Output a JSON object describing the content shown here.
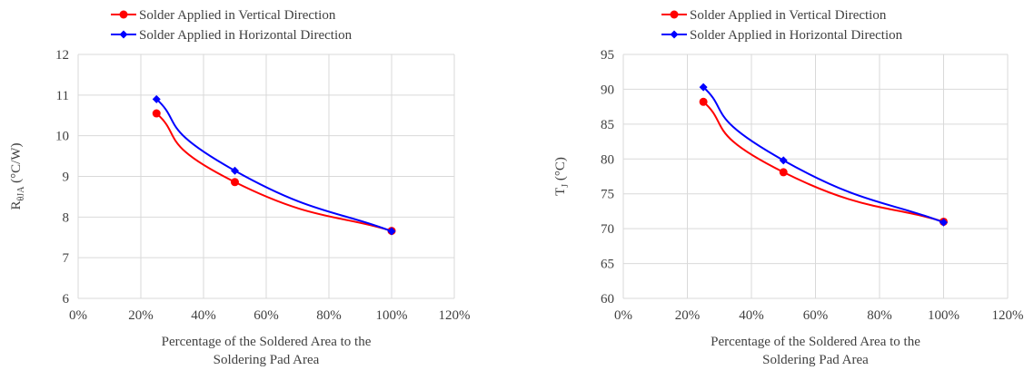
{
  "chart_data": [
    {
      "type": "line",
      "x": [
        0.25,
        0.5,
        1.0
      ],
      "xlim": [
        0,
        1.2
      ],
      "xticks": [
        "0%",
        "20%",
        "40%",
        "60%",
        "80%",
        "100%",
        "120%"
      ],
      "ylim": [
        6,
        12
      ],
      "yticks": [
        "6",
        "7",
        "8",
        "9",
        "10",
        "11",
        "12"
      ],
      "xlabel_lines": [
        "Percentage of the Soldered Area to the",
        "Soldering Pad Area"
      ],
      "ylabel": {
        "main": "R",
        "sub": "θJA",
        "unit": " (°C/W)"
      },
      "grid": true,
      "smooth": true,
      "legend_position": "top",
      "series": [
        {
          "name": "Solder Applied in Vertical Direction",
          "values": [
            10.55,
            8.86,
            7.66
          ],
          "color": "#ff0000",
          "marker": "circle"
        },
        {
          "name": "Solder Applied in Horizontal Direction",
          "values": [
            10.9,
            9.14,
            7.65
          ],
          "color": "#0000ff",
          "marker": "diamond"
        }
      ]
    },
    {
      "type": "line",
      "x": [
        0.25,
        0.5,
        1.0
      ],
      "xlim": [
        0,
        1.2
      ],
      "xticks": [
        "0%",
        "20%",
        "40%",
        "60%",
        "80%",
        "100%",
        "120%"
      ],
      "ylim": [
        60,
        95
      ],
      "yticks": [
        "60",
        "65",
        "70",
        "75",
        "80",
        "85",
        "90",
        "95"
      ],
      "xlabel_lines": [
        "Percentage of the Soldered Area to the",
        "Soldering Pad Area"
      ],
      "ylabel": {
        "main": "T",
        "sub": "J",
        "unit": " (°C)"
      },
      "grid": true,
      "smooth": true,
      "legend_position": "top",
      "series": [
        {
          "name": "Solder Applied in Vertical Direction",
          "values": [
            88.2,
            78.1,
            71.0
          ],
          "color": "#ff0000",
          "marker": "circle"
        },
        {
          "name": "Solder Applied in Horizontal Direction",
          "values": [
            90.3,
            79.8,
            70.9
          ],
          "color": "#0000ff",
          "marker": "diamond"
        }
      ]
    }
  ]
}
